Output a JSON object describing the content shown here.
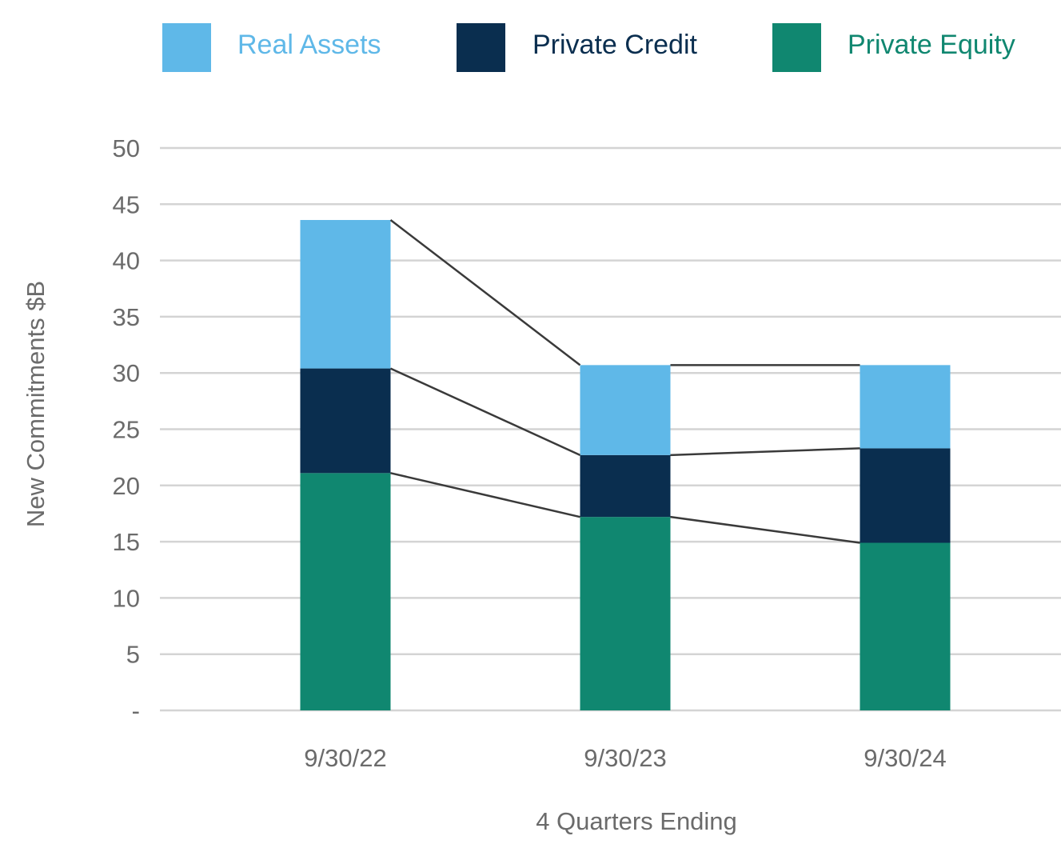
{
  "chart_data": {
    "type": "bar",
    "stacked": true,
    "title": "",
    "xlabel": "4 Quarters Ending",
    "ylabel": "New Commitments $B",
    "ylim": [
      0,
      50
    ],
    "yticks": [
      0,
      5,
      10,
      15,
      20,
      25,
      30,
      35,
      40,
      45,
      50
    ],
    "ytick_labels": [
      "-",
      "5",
      "10",
      "15",
      "20",
      "25",
      "30",
      "35",
      "40",
      "45",
      "50"
    ],
    "categories": [
      "9/30/22",
      "9/30/23",
      "9/30/24"
    ],
    "series": [
      {
        "name": "Private Equity",
        "color": "#108770",
        "values": [
          21.1,
          17.2,
          14.9
        ]
      },
      {
        "name": "Private Credit",
        "color": "#0a2e4f",
        "values": [
          9.3,
          5.5,
          8.4
        ]
      },
      {
        "name": "Real Assets",
        "color": "#5fb8e8",
        "values": [
          13.2,
          8.0,
          7.4
        ]
      }
    ],
    "legend": {
      "position": "top",
      "order": [
        "Real Assets",
        "Private Credit",
        "Private Equity"
      ]
    },
    "grid": true,
    "gridline_color": "#d4d4d4",
    "connector_lines": true,
    "connector_color": "#3a3a3a"
  }
}
